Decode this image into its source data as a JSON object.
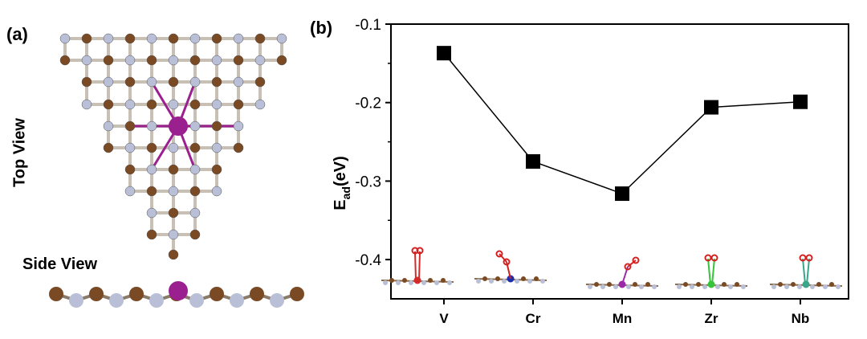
{
  "panels": {
    "a": {
      "label": "(a)",
      "top_view_label": "Top View",
      "side_view_label": "Side View",
      "colors": {
        "carbon": "#7a4a24",
        "nitrogen": "#b9bfd6",
        "metal": "#9a1f8f"
      }
    },
    "b": {
      "label": "(b)"
    }
  },
  "chart_data": {
    "type": "line",
    "categories": [
      "V",
      "Cr",
      "Mn",
      "Zr",
      "Nb"
    ],
    "values": [
      -0.137,
      -0.275,
      -0.316,
      -0.206,
      -0.199
    ],
    "xlabel": "",
    "ylabel_main": "E",
    "ylabel_sub": "ad",
    "ylabel_unit": "(eV)",
    "ylim": [
      -0.45,
      -0.1
    ],
    "yticks": [
      -0.1,
      -0.2,
      -0.3,
      -0.4
    ],
    "ytick_labels": [
      "-0.1",
      "-0.2",
      "-0.3",
      "-0.4"
    ],
    "grid": false,
    "marker": "square",
    "color": "#000000",
    "inset_metal_colors": {
      "V": "#d42a2a",
      "Cr": "#1a2fb0",
      "Mn": "#9a2aa8",
      "Zr": "#35c43a",
      "Nb": "#3aa58a"
    }
  }
}
